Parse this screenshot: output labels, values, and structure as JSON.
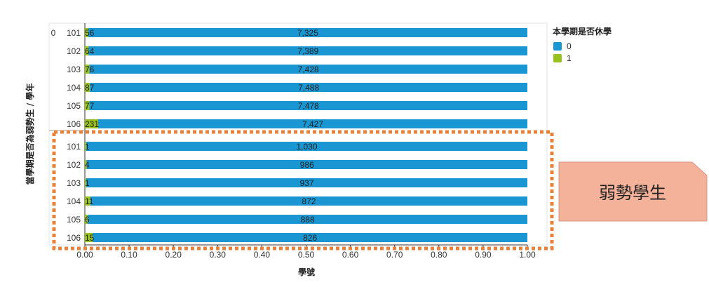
{
  "chart_data": {
    "type": "bar",
    "orientation": "horizontal",
    "stacked": true,
    "normalized": true,
    "xlabel": "學號",
    "ylabel": "當學期是否為弱勢生 / 學年",
    "xlim": [
      0,
      1
    ],
    "x_ticks": [
      "0.00",
      "0.10",
      "0.20",
      "0.30",
      "0.40",
      "0.50",
      "0.60",
      "0.70",
      "0.80",
      "0.90",
      "1.00"
    ],
    "legend": {
      "title": "本學期是否休學",
      "placement": "top-right"
    },
    "groups": [
      {
        "label": "0",
        "categories": [
          "101",
          "102",
          "103",
          "104",
          "105",
          "106"
        ]
      },
      {
        "label": "",
        "categories": [
          "101",
          "102",
          "103",
          "104",
          "105",
          "106"
        ]
      }
    ],
    "series": [
      {
        "name": "0",
        "color": "#1a96d2",
        "values": [
          7325,
          7389,
          7428,
          7488,
          7478,
          7427,
          1030,
          986,
          937,
          872,
          888,
          826
        ]
      },
      {
        "name": "1",
        "color": "#99c31c",
        "values": [
          56,
          64,
          76,
          87,
          77,
          231,
          1,
          4,
          1,
          11,
          6,
          15
        ]
      }
    ],
    "labels": {
      "series0": [
        "7,325",
        "7,389",
        "7,428",
        "7,488",
        "7,478",
        "7,427",
        "1,030",
        "986",
        "937",
        "872",
        "888",
        "826"
      ],
      "series1": [
        "56",
        "64",
        "76",
        "87",
        "77",
        "231",
        "1",
        "4",
        "1",
        "11",
        "6",
        "15"
      ]
    }
  },
  "annotation": {
    "callout_text": "弱勢學生",
    "highlight_color": "#e8823a",
    "callout_fill": "#f4b29a"
  }
}
